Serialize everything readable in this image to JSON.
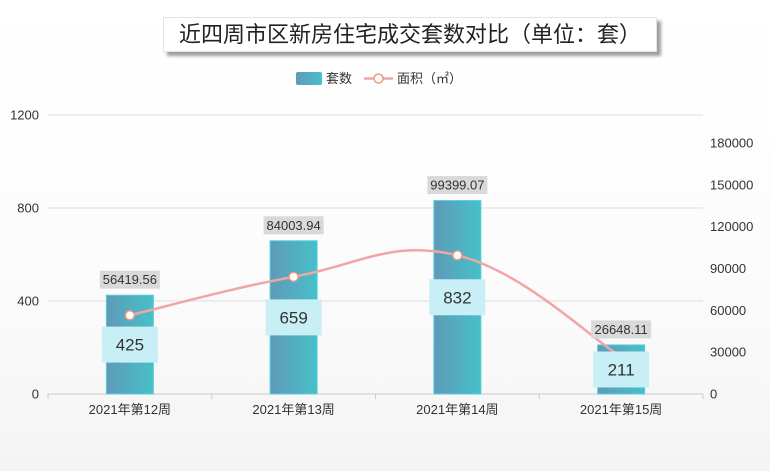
{
  "chart_data": {
    "type": "bar",
    "title": "近四周市区新房住宅成交套数对比（单位：套）",
    "categories": [
      "2021年第12周",
      "2021年第13周",
      "2021年第14周",
      "2021年第15周"
    ],
    "series": [
      {
        "name": "套数",
        "type": "bar",
        "y_axis": "left",
        "values": [
          425,
          659,
          832,
          211
        ]
      },
      {
        "name": "面积（㎡）",
        "type": "line",
        "y_axis": "right",
        "smooth": true,
        "values": [
          56419.56,
          84003.94,
          99399.07,
          26648.11
        ]
      }
    ],
    "y_left": {
      "min": 0,
      "max": 1200,
      "ticks": [
        0,
        400,
        800,
        1200
      ]
    },
    "y_right": {
      "min": 0,
      "max": 200000,
      "ticks": [
        0,
        30000,
        60000,
        90000,
        120000,
        150000,
        180000
      ]
    },
    "grid": true,
    "legend": "top-center",
    "colors": {
      "bar_gradient_start": "#5f9ab9",
      "bar_gradient_end": "#47c0c8",
      "bar_border": "#52d0da",
      "bar_label_bg": "#c8eff5",
      "line": "#f2a5a7",
      "marker_stroke": "#ec9b7f",
      "marker_fill": "#ffffff",
      "line_label_bg": "#d9d9d9",
      "grid": "#dddddd",
      "axis": "#cccccc"
    }
  }
}
